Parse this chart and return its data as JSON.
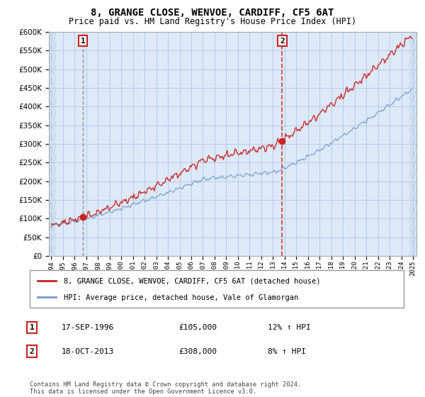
{
  "title": "8, GRANGE CLOSE, WENVOE, CARDIFF, CF5 6AT",
  "subtitle": "Price paid vs. HM Land Registry's House Price Index (HPI)",
  "legend_line1": "8, GRANGE CLOSE, WENVOE, CARDIFF, CF5 6AT (detached house)",
  "legend_line2": "HPI: Average price, detached house, Vale of Glamorgan",
  "point1_label": "1",
  "point1_date": "17-SEP-1996",
  "point1_price": "£105,000",
  "point1_hpi": "12% ↑ HPI",
  "point1_year": 1996.71,
  "point1_value": 105000,
  "point2_label": "2",
  "point2_date": "18-OCT-2013",
  "point2_price": "£308,000",
  "point2_hpi": "8% ↑ HPI",
  "point2_year": 2013.79,
  "point2_value": 308000,
  "footer": "Contains HM Land Registry data © Crown copyright and database right 2024.\nThis data is licensed under the Open Government Licence v3.0.",
  "ylim": [
    0,
    600000
  ],
  "yticks": [
    0,
    50000,
    100000,
    150000,
    200000,
    250000,
    300000,
    350000,
    400000,
    450000,
    500000,
    550000,
    600000
  ],
  "red_color": "#cc2222",
  "blue_color": "#7799cc",
  "bg_color": "#ffffff",
  "plot_bg_color": "#dce9f8",
  "grid_color": "#b8cce4",
  "hatch_color": "#b0c4de",
  "dashed_line1_color": "#aaaaaa",
  "dashed_line2_color": "#cc2222"
}
